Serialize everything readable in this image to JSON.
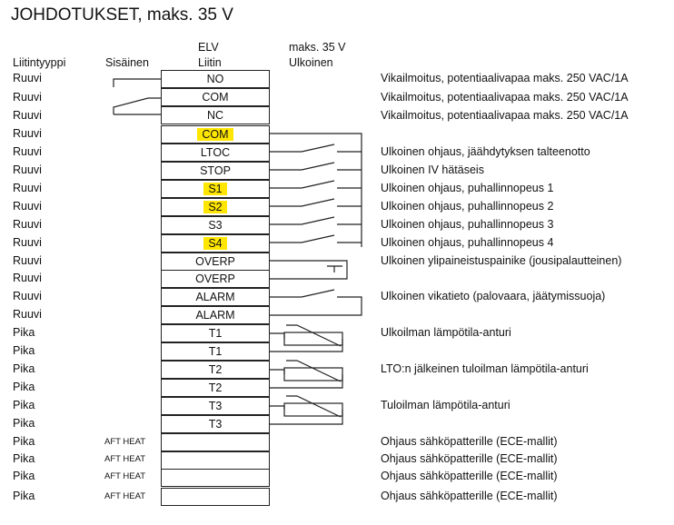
{
  "title": "JOHDOTUKSET, maks. 35 V",
  "headers": {
    "type": "Liitintyyppi",
    "inner": "Sisäinen",
    "elv_line1": "ELV",
    "elv_line2": "Liitin",
    "ext_line1": "maks. 35 V",
    "ext_line2": "Ulkoinen"
  },
  "rows": [
    {
      "type": "Ruuvi",
      "inner": "",
      "pin": "NO",
      "highlight": false,
      "desc": "Vikailmoitus, potentiaalivapaa maks. 250 VAC/1A"
    },
    {
      "type": "Ruuvi",
      "inner": "",
      "pin": "COM",
      "highlight": false,
      "desc": "Vikailmoitus, potentiaalivapaa maks. 250 VAC/1A"
    },
    {
      "type": "Ruuvi",
      "inner": "",
      "pin": "NC",
      "highlight": false,
      "desc": "Vikailmoitus, potentiaalivapaa maks. 250 VAC/1A"
    },
    {
      "type": "Ruuvi",
      "inner": "",
      "pin": "COM",
      "highlight": true,
      "desc": ""
    },
    {
      "type": "Ruuvi",
      "inner": "",
      "pin": "LTOC",
      "highlight": false,
      "desc": "Ulkoinen ohjaus, jäähdytyksen talteenotto"
    },
    {
      "type": "Ruuvi",
      "inner": "",
      "pin": "STOP",
      "highlight": false,
      "desc": "Ulkoinen IV hätäseis"
    },
    {
      "type": "Ruuvi",
      "inner": "",
      "pin": "S1",
      "highlight": true,
      "desc": "Ulkoinen ohjaus, puhallinnopeus 1"
    },
    {
      "type": "Ruuvi",
      "inner": "",
      "pin": "S2",
      "highlight": true,
      "desc": "Ulkoinen ohjaus, puhallinnopeus 2"
    },
    {
      "type": "Ruuvi",
      "inner": "",
      "pin": "S3",
      "highlight": false,
      "desc": "Ulkoinen ohjaus, puhallinnopeus 3"
    },
    {
      "type": "Ruuvi",
      "inner": "",
      "pin": "S4",
      "highlight": true,
      "desc": "Ulkoinen ohjaus, puhallinnopeus 4"
    },
    {
      "type": "Ruuvi",
      "inner": "",
      "pin": "OVERP",
      "highlight": false,
      "desc": "Ulkoinen ylipaineistuspainike (jousipalautteinen)"
    },
    {
      "type": "Ruuvi",
      "inner": "",
      "pin": "OVERP",
      "highlight": false,
      "desc": ""
    },
    {
      "type": "Ruuvi",
      "inner": "",
      "pin": "ALARM",
      "highlight": false,
      "desc": "Ulkoinen vikatieto (palovaara, jäätymissuoja)"
    },
    {
      "type": "Ruuvi",
      "inner": "",
      "pin": "ALARM",
      "highlight": false,
      "desc": ""
    },
    {
      "type": "Pika",
      "inner": "",
      "pin": "T1",
      "highlight": false,
      "desc": "Ulkoilman lämpötila-anturi"
    },
    {
      "type": "Pika",
      "inner": "",
      "pin": "T1",
      "highlight": false,
      "desc": ""
    },
    {
      "type": "Pika",
      "inner": "",
      "pin": "T2",
      "highlight": false,
      "desc": "LTO:n jälkeinen tuloilman lämpötila-anturi"
    },
    {
      "type": "Pika",
      "inner": "",
      "pin": "T2",
      "highlight": false,
      "desc": ""
    },
    {
      "type": "Pika",
      "inner": "",
      "pin": "T3",
      "highlight": false,
      "desc": "Tuloilman lämpötila-anturi"
    },
    {
      "type": "Pika",
      "inner": "",
      "pin": "T3",
      "highlight": false,
      "desc": ""
    },
    {
      "type": "Pika",
      "inner": "AFT HEAT",
      "pin": "",
      "highlight": false,
      "desc": "Ohjaus sähköpatterille (ECE-mallit)"
    },
    {
      "type": "Pika",
      "inner": "AFT HEAT",
      "pin": "",
      "highlight": false,
      "desc": "Ohjaus sähköpatterille (ECE-mallit)"
    },
    {
      "type": "Pika",
      "inner": "AFT HEAT",
      "pin": "",
      "highlight": false,
      "desc": "Ohjaus sähköpatterille (ECE-mallit)"
    },
    {
      "type": "Pika",
      "inner": "AFT HEAT",
      "pin": "",
      "highlight": false,
      "desc": "Ohjaus sähköpatterille (ECE-mallit)"
    }
  ],
  "colors": {
    "highlight": "#ffe600",
    "line": "#222222"
  }
}
